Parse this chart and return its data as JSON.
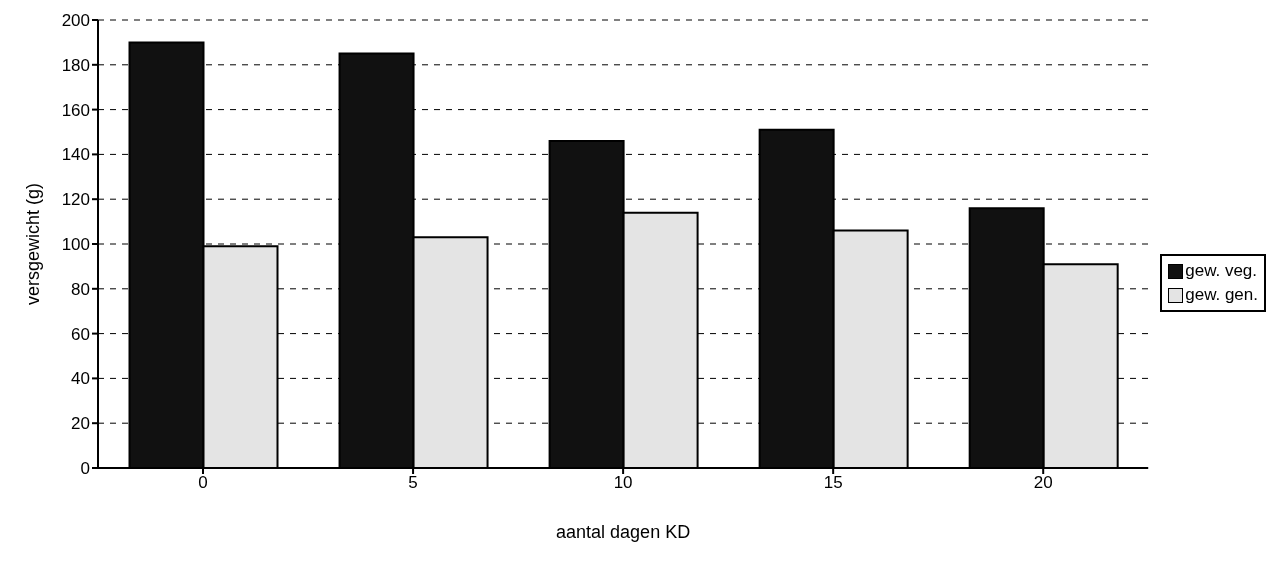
{
  "chart_data": {
    "type": "bar",
    "xlabel": "aantal dagen KD",
    "ylabel": "versgewicht (g)",
    "categories": [
      "0",
      "5",
      "10",
      "15",
      "20"
    ],
    "series": [
      {
        "name": "gew. veg.",
        "color": "#111111",
        "values": [
          190,
          185,
          146,
          151,
          116
        ]
      },
      {
        "name": "gew. gen.",
        "color": "#e4e4e4",
        "values": [
          99,
          103,
          114,
          106,
          91
        ]
      }
    ],
    "ylim": [
      0,
      200
    ],
    "yticks": [
      0,
      20,
      40,
      60,
      80,
      100,
      120,
      140,
      160,
      180,
      200
    ],
    "grid": "y",
    "legend": "right"
  }
}
